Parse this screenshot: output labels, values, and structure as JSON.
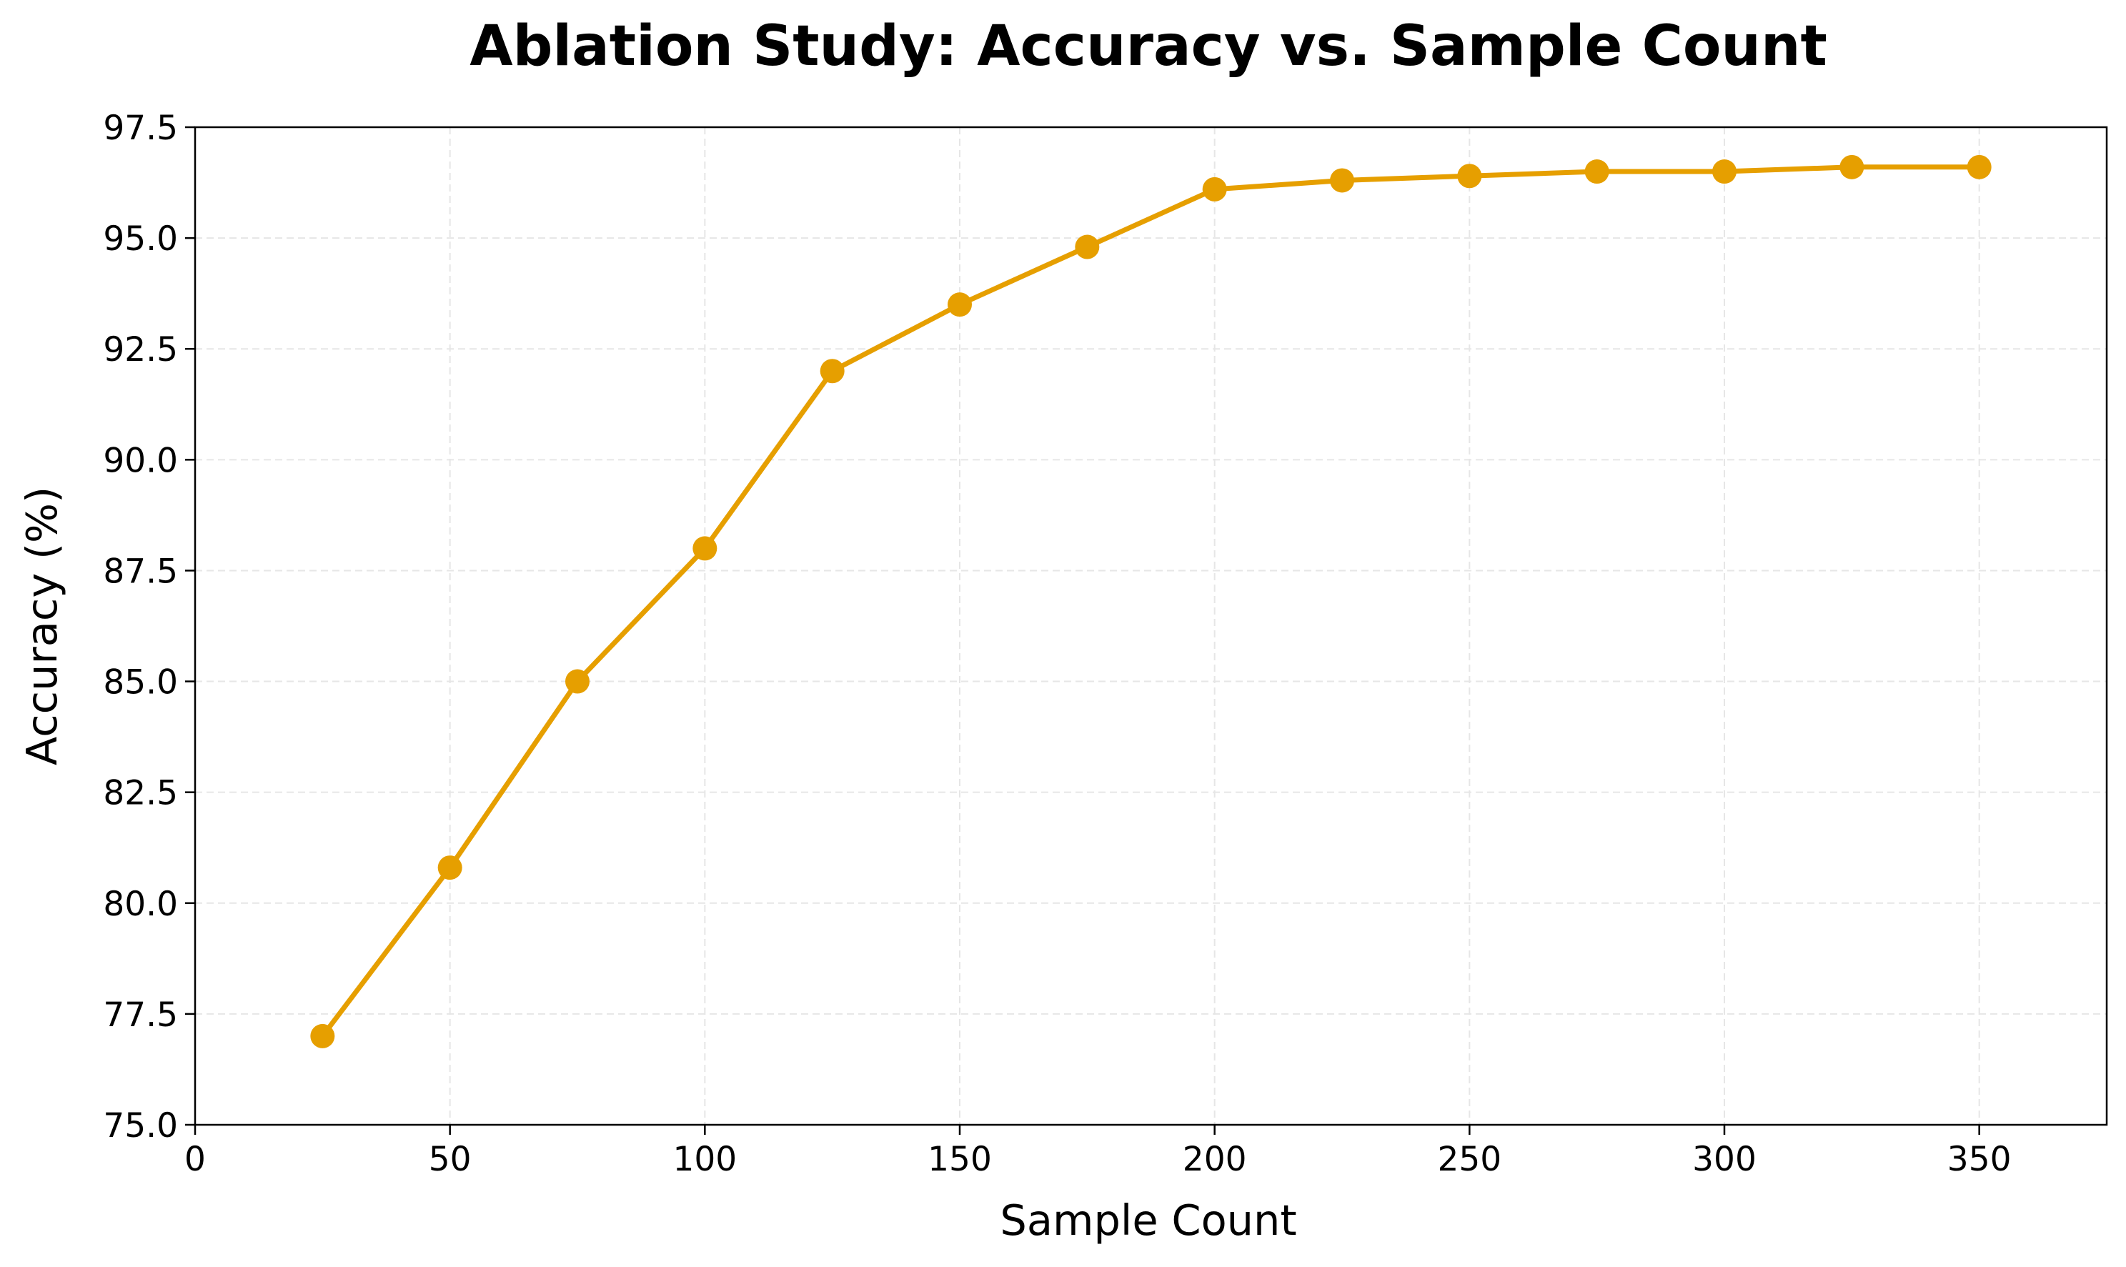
{
  "chart_data": {
    "type": "line",
    "title": "Ablation Study: Accuracy vs. Sample Count",
    "xlabel": "Sample Count",
    "ylabel": "Accuracy (%)",
    "xlim": [
      0,
      375
    ],
    "ylim": [
      75.0,
      97.5
    ],
    "xticks": [
      0,
      50,
      100,
      150,
      200,
      250,
      300,
      350
    ],
    "xtick_labels": [
      "0",
      "50",
      "100",
      "150",
      "200",
      "250",
      "300",
      "350"
    ],
    "yticks": [
      75.0,
      77.5,
      80.0,
      82.5,
      85.0,
      87.5,
      90.0,
      92.5,
      95.0,
      97.5
    ],
    "ytick_labels": [
      "75.0",
      "77.5",
      "80.0",
      "82.5",
      "85.0",
      "87.5",
      "90.0",
      "92.5",
      "95.0",
      "97.5"
    ],
    "grid": true,
    "color": "#E69F00",
    "x": [
      25,
      50,
      75,
      100,
      125,
      150,
      175,
      200,
      225,
      250,
      275,
      300,
      325,
      350
    ],
    "series": [
      {
        "values": [
          77.0,
          80.8,
          85.0,
          88.0,
          92.0,
          93.5,
          94.8,
          96.1,
          96.3,
          96.4,
          96.5,
          96.5,
          96.6,
          96.6
        ]
      }
    ]
  }
}
